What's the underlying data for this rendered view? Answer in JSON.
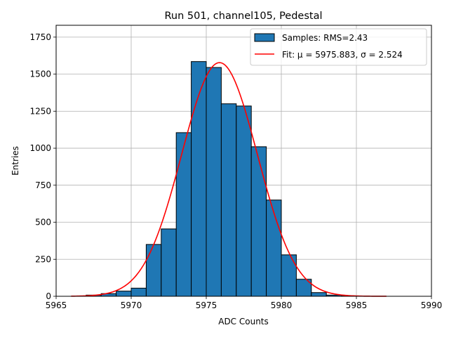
{
  "chart_data": {
    "type": "bar",
    "title": "Run 501, channel105, Pedestal",
    "xlabel": "ADC Counts",
    "ylabel": "Entries",
    "xlim": [
      5965,
      5990
    ],
    "ylim": [
      0,
      1830
    ],
    "xticks": [
      5965,
      5970,
      5975,
      5980,
      5985,
      5990
    ],
    "yticks": [
      0,
      250,
      500,
      750,
      1000,
      1250,
      1500,
      1750
    ],
    "xtick_labels": [
      "5965",
      "5970",
      "5975",
      "5980",
      "5985",
      "5990"
    ],
    "ytick_labels": [
      "0",
      "250",
      "500",
      "750",
      "1000",
      "1250",
      "1500",
      "1750"
    ],
    "grid": true,
    "legend_position": "top-right",
    "bin_width": 1,
    "bins": [
      {
        "left": 5967,
        "value": 8
      },
      {
        "left": 5968,
        "value": 18
      },
      {
        "left": 5969,
        "value": 35
      },
      {
        "left": 5970,
        "value": 55
      },
      {
        "left": 5971,
        "value": 350
      },
      {
        "left": 5972,
        "value": 455
      },
      {
        "left": 5973,
        "value": 1105
      },
      {
        "left": 5974,
        "value": 1585
      },
      {
        "left": 5975,
        "value": 1545
      },
      {
        "left": 5976,
        "value": 1300
      },
      {
        "left": 5977,
        "value": 1285
      },
      {
        "left": 5978,
        "value": 1010
      },
      {
        "left": 5979,
        "value": 650
      },
      {
        "left": 5980,
        "value": 280
      },
      {
        "left": 5981,
        "value": 115
      },
      {
        "left": 5982,
        "value": 25
      },
      {
        "left": 5983,
        "value": 8
      },
      {
        "left": 5984,
        "value": 2
      }
    ],
    "fit": {
      "mu": 5975.883,
      "sigma": 2.524,
      "amplitude": 1578,
      "x_range": [
        5966,
        5987
      ]
    },
    "series": [
      {
        "name": "Samples: RMS=2.43",
        "color": "#1f77b4"
      },
      {
        "name": "Fit: μ = 5975.883, σ = 2.524",
        "color": "#ff0000"
      }
    ]
  }
}
